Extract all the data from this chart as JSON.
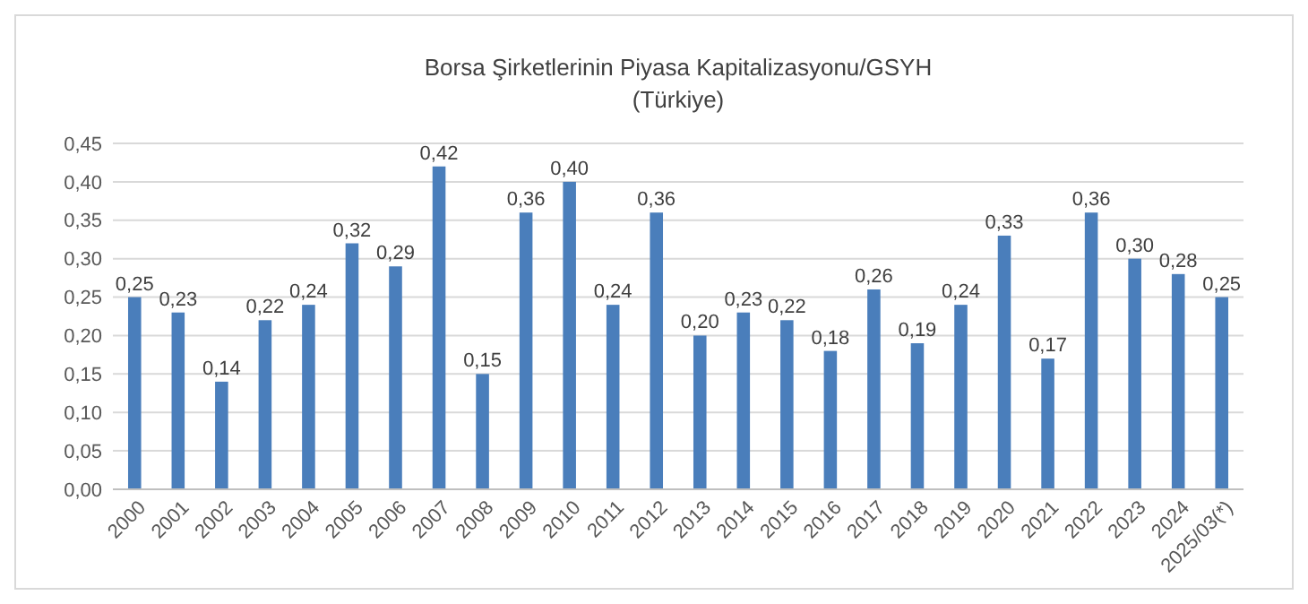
{
  "chart_data": {
    "type": "bar",
    "title": "Borsa Şirketlerinin Piyasa Kapitalizasyonu/GSYH",
    "subtitle": "(Türkiye)",
    "categories": [
      "2000",
      "2001",
      "2002",
      "2003",
      "2004",
      "2005",
      "2006",
      "2007",
      "2008",
      "2009",
      "2010",
      "2011",
      "2012",
      "2013",
      "2014",
      "2015",
      "2016",
      "2017",
      "2018",
      "2019",
      "2020",
      "2021",
      "2022",
      "2023",
      "2024",
      "2025/03(*)"
    ],
    "values": [
      0.25,
      0.23,
      0.14,
      0.22,
      0.24,
      0.32,
      0.29,
      0.42,
      0.15,
      0.36,
      0.4,
      0.24,
      0.36,
      0.2,
      0.23,
      0.22,
      0.18,
      0.26,
      0.19,
      0.24,
      0.33,
      0.17,
      0.36,
      0.3,
      0.28,
      0.25
    ],
    "value_labels": [
      "0,25",
      "0,23",
      "0,14",
      "0,22",
      "0,24",
      "0,32",
      "0,29",
      "0,42",
      "0,15",
      "0,36",
      "0,40",
      "0,24",
      "0,36",
      "0,20",
      "0,23",
      "0,22",
      "0,18",
      "0,26",
      "0,19",
      "0,24",
      "0,33",
      "0,17",
      "0,36",
      "0,30",
      "0,28",
      "0,25"
    ],
    "color": "#4a7ebb",
    "ylim": [
      0,
      0.45
    ],
    "yticks": [
      {
        "value": 0,
        "label": "0,00"
      },
      {
        "value": 0.05,
        "label": "0,05"
      },
      {
        "value": 0.1,
        "label": "0,10"
      },
      {
        "value": 0.15,
        "label": "0,15"
      },
      {
        "value": 0.2,
        "label": "0,20"
      },
      {
        "value": 0.25,
        "label": "0,25"
      },
      {
        "value": 0.3,
        "label": "0,30"
      },
      {
        "value": 0.35,
        "label": "0,35"
      },
      {
        "value": 0.4,
        "label": "0,40"
      },
      {
        "value": 0.45,
        "label": "0,45"
      }
    ],
    "grid": true
  }
}
